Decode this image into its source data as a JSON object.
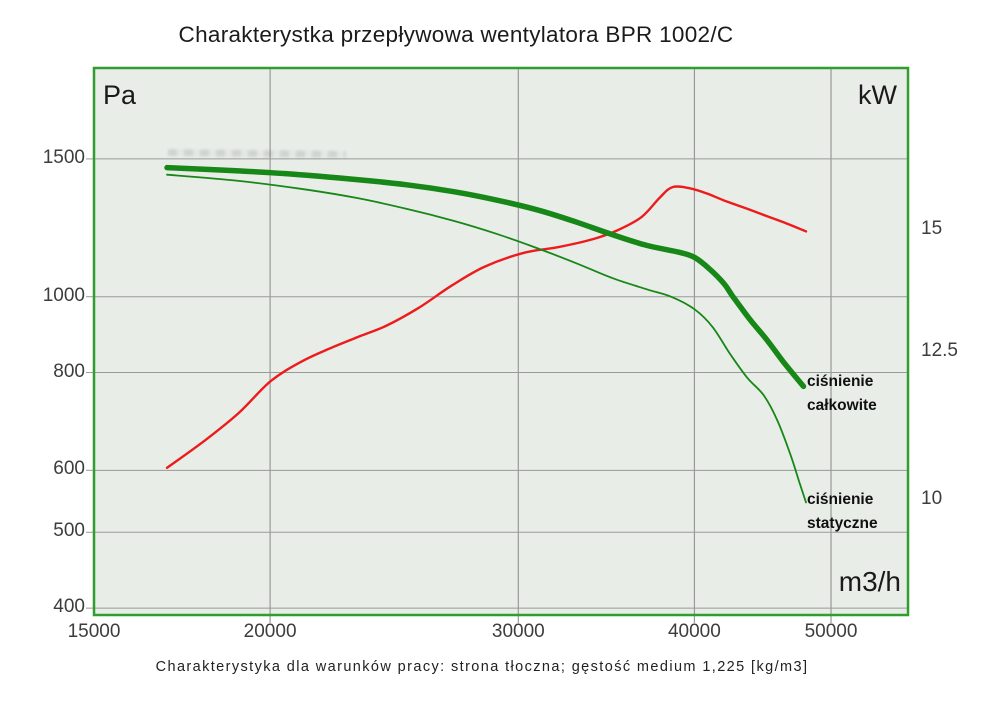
{
  "title": "Charakterystka przepływowa wentylatora BPR 1002/C",
  "caption": "Charakterystyka dla warunków pracy: strona tłoczna; gęstość medium 1,225 [kg/m3]",
  "chart_data": {
    "type": "line",
    "grid": true,
    "colors": {
      "plot_bg": "#e9ede8",
      "grid": "#999999",
      "frame": "#2f9e2f"
    },
    "x_axis": {
      "label": "m3/h",
      "scale": "log",
      "min": 15000,
      "max": 56700,
      "ticks": [
        {
          "v": 15000,
          "label": "15000"
        },
        {
          "v": 20000,
          "label": "20000"
        },
        {
          "v": 30000,
          "label": "30000"
        },
        {
          "v": 40000,
          "label": "40000"
        },
        {
          "v": 50000,
          "label": "50000"
        }
      ]
    },
    "y_axis_left": {
      "label": "Pa",
      "scale": "log",
      "min": 392,
      "max": 1960,
      "ticks": [
        {
          "v": 1500,
          "label": "1500"
        },
        {
          "v": 1000,
          "label": "1000"
        },
        {
          "v": 800,
          "label": "800"
        },
        {
          "v": 600,
          "label": "600"
        },
        {
          "v": 500,
          "label": "500"
        },
        {
          "v": 400,
          "label": "400"
        }
      ]
    },
    "y_axis_right": {
      "label": "kW",
      "scale": "log",
      "min": 8.42,
      "max": 19.13,
      "ticks": [
        {
          "v": 15,
          "label": "15"
        },
        {
          "v": 12.5,
          "label": "12.5"
        },
        {
          "v": 10,
          "label": "10"
        }
      ]
    },
    "series": [
      {
        "id": "power-curve",
        "axis": "right",
        "color": "#ed1c1c",
        "width": 2.4,
        "points": [
          [
            16900,
            10.5
          ],
          [
            18000,
            10.95
          ],
          [
            19000,
            11.4
          ],
          [
            20000,
            11.95
          ],
          [
            21000,
            12.3
          ],
          [
            22000,
            12.55
          ],
          [
            23200,
            12.8
          ],
          [
            24200,
            13.0
          ],
          [
            25500,
            13.35
          ],
          [
            26900,
            13.8
          ],
          [
            28400,
            14.2
          ],
          [
            30300,
            14.5
          ],
          [
            32000,
            14.62
          ],
          [
            33900,
            14.8
          ],
          [
            35300,
            15.0
          ],
          [
            36700,
            15.3
          ],
          [
            37800,
            15.75
          ],
          [
            38600,
            16.0
          ],
          [
            39700,
            15.97
          ],
          [
            40800,
            15.85
          ],
          [
            42000,
            15.68
          ],
          [
            43500,
            15.5
          ],
          [
            45000,
            15.32
          ],
          [
            46500,
            15.15
          ],
          [
            48000,
            14.97
          ]
        ]
      },
      {
        "id": "static-pressure-curve",
        "axis": "left",
        "color": "#178717",
        "width": 1.8,
        "points": [
          [
            16900,
            1432
          ],
          [
            19000,
            1406
          ],
          [
            21000,
            1374
          ],
          [
            23000,
            1338
          ],
          [
            25000,
            1295
          ],
          [
            27000,
            1250
          ],
          [
            29000,
            1202
          ],
          [
            31000,
            1152
          ],
          [
            33000,
            1103
          ],
          [
            35000,
            1056
          ],
          [
            37000,
            1022
          ],
          [
            38500,
            1000
          ],
          [
            40000,
            964
          ],
          [
            41200,
            915
          ],
          [
            42400,
            845
          ],
          [
            43600,
            788
          ],
          [
            44800,
            748
          ],
          [
            45800,
            695
          ],
          [
            46800,
            628
          ],
          [
            47500,
            578
          ],
          [
            48000,
            546
          ]
        ]
      },
      {
        "id": "total-pressure-curve",
        "axis": "left",
        "color": "#178717",
        "width": 5.5,
        "points": [
          [
            16900,
            1462
          ],
          [
            19000,
            1448
          ],
          [
            21000,
            1432
          ],
          [
            23000,
            1412
          ],
          [
            25000,
            1390
          ],
          [
            27000,
            1362
          ],
          [
            29000,
            1328
          ],
          [
            31000,
            1290
          ],
          [
            33000,
            1245
          ],
          [
            35000,
            1200
          ],
          [
            37000,
            1163
          ],
          [
            39000,
            1140
          ],
          [
            40000,
            1123
          ],
          [
            41000,
            1085
          ],
          [
            42000,
            1038
          ],
          [
            42600,
            1000
          ],
          [
            43800,
            935
          ],
          [
            45000,
            882
          ],
          [
            46200,
            828
          ],
          [
            47800,
            768
          ]
        ]
      }
    ],
    "annotations": [
      {
        "id": "total-pressure-label",
        "lines": [
          "ciśnienie",
          "całkowite"
        ]
      },
      {
        "id": "static-pressure-label",
        "lines": [
          "ciśnienie",
          "statyczne"
        ]
      }
    ]
  }
}
